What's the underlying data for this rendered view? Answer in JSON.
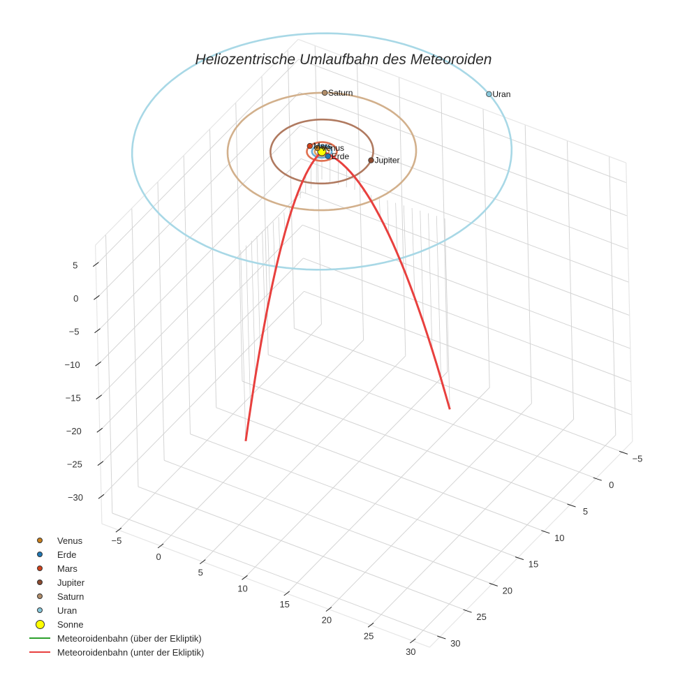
{
  "chart_data": {
    "type": "scatter3d",
    "title": "Heliozentrische Umlaufbahn des Meteoroiden",
    "axes": {
      "x": {
        "label": "",
        "range": [
          -7,
          32
        ],
        "ticks": [
          -5,
          0,
          5,
          10,
          15,
          20,
          25,
          30
        ]
      },
      "y": {
        "label": "",
        "range": [
          -7,
          32
        ],
        "ticks": [
          -5,
          0,
          5,
          10,
          15,
          20,
          25,
          30
        ]
      },
      "z": {
        "label": "",
        "range": [
          -34,
          8
        ],
        "ticks": [
          5,
          0,
          -5,
          -10,
          -15,
          -20,
          -25,
          -30
        ]
      }
    },
    "grid": true,
    "legend_position": "bottom-left",
    "planets": [
      {
        "name": "Venus",
        "a": 0.72,
        "color": "#c8801e",
        "angle_deg": 200,
        "label": "Venus"
      },
      {
        "name": "Erde",
        "a": 1.0,
        "color": "#1f77b4",
        "angle_deg": 20,
        "label": "Erde"
      },
      {
        "name": "Mars",
        "a": 1.52,
        "color": "#d0421b",
        "angle_deg": 185,
        "label": "Mars"
      },
      {
        "name": "Jupiter",
        "a": 5.2,
        "color": "#8c4a2f",
        "angle_deg": 345,
        "label": "Jupiter"
      },
      {
        "name": "Saturn",
        "a": 9.54,
        "color": "#b08d6a",
        "angle_deg": 240,
        "label": "Saturn"
      },
      {
        "name": "Uran",
        "a": 19.2,
        "color": "#87c6d9",
        "angle_deg": 300,
        "label": "Uran"
      }
    ],
    "orbit_colors": {
      "Venus": "#e0a060",
      "Erde": "#6aaed6",
      "Mars": "#e07050",
      "Jupiter": "#b07a60",
      "Saturn": "#d2b08c",
      "Uran": "#a8d8e6"
    },
    "sun": {
      "name": "Sonne",
      "color": "#ffff00",
      "x": 0,
      "y": 0,
      "z": 0
    },
    "meteoroid": {
      "above_ecliptic": {
        "name": "Meteoroidenbahn (über der Ekliptik)",
        "color": "#2ca02c",
        "points": []
      },
      "below_ecliptic": {
        "name": "Meteoroidenbahn (unter der Ekliptik)",
        "color": "#e8403e",
        "start": {
          "x": 14,
          "y": -1,
          "z": -33
        },
        "perihelion": {
          "x": 0,
          "y": 0,
          "z": 0
        },
        "end": {
          "x": -1,
          "y": 14,
          "z": -33
        }
      }
    }
  },
  "legend": {
    "items": [
      {
        "label": "Venus",
        "type": "dot",
        "color": "#c8801e"
      },
      {
        "label": "Erde",
        "type": "dot",
        "color": "#1f77b4"
      },
      {
        "label": "Mars",
        "type": "dot",
        "color": "#d0421b"
      },
      {
        "label": "Jupiter",
        "type": "dot",
        "color": "#8c4a2f"
      },
      {
        "label": "Saturn",
        "type": "dot",
        "color": "#b08d6a"
      },
      {
        "label": "Uran",
        "type": "dot",
        "color": "#87c6d9"
      },
      {
        "label": "Sonne",
        "type": "bigdot",
        "color": "#ffff00"
      },
      {
        "label": "Meteoroidenbahn (über der Ekliptik)",
        "type": "line",
        "color": "#2ca02c"
      },
      {
        "label": "Meteoroidenbahn (unter der Ekliptik)",
        "type": "line",
        "color": "#e8403e"
      }
    ]
  }
}
